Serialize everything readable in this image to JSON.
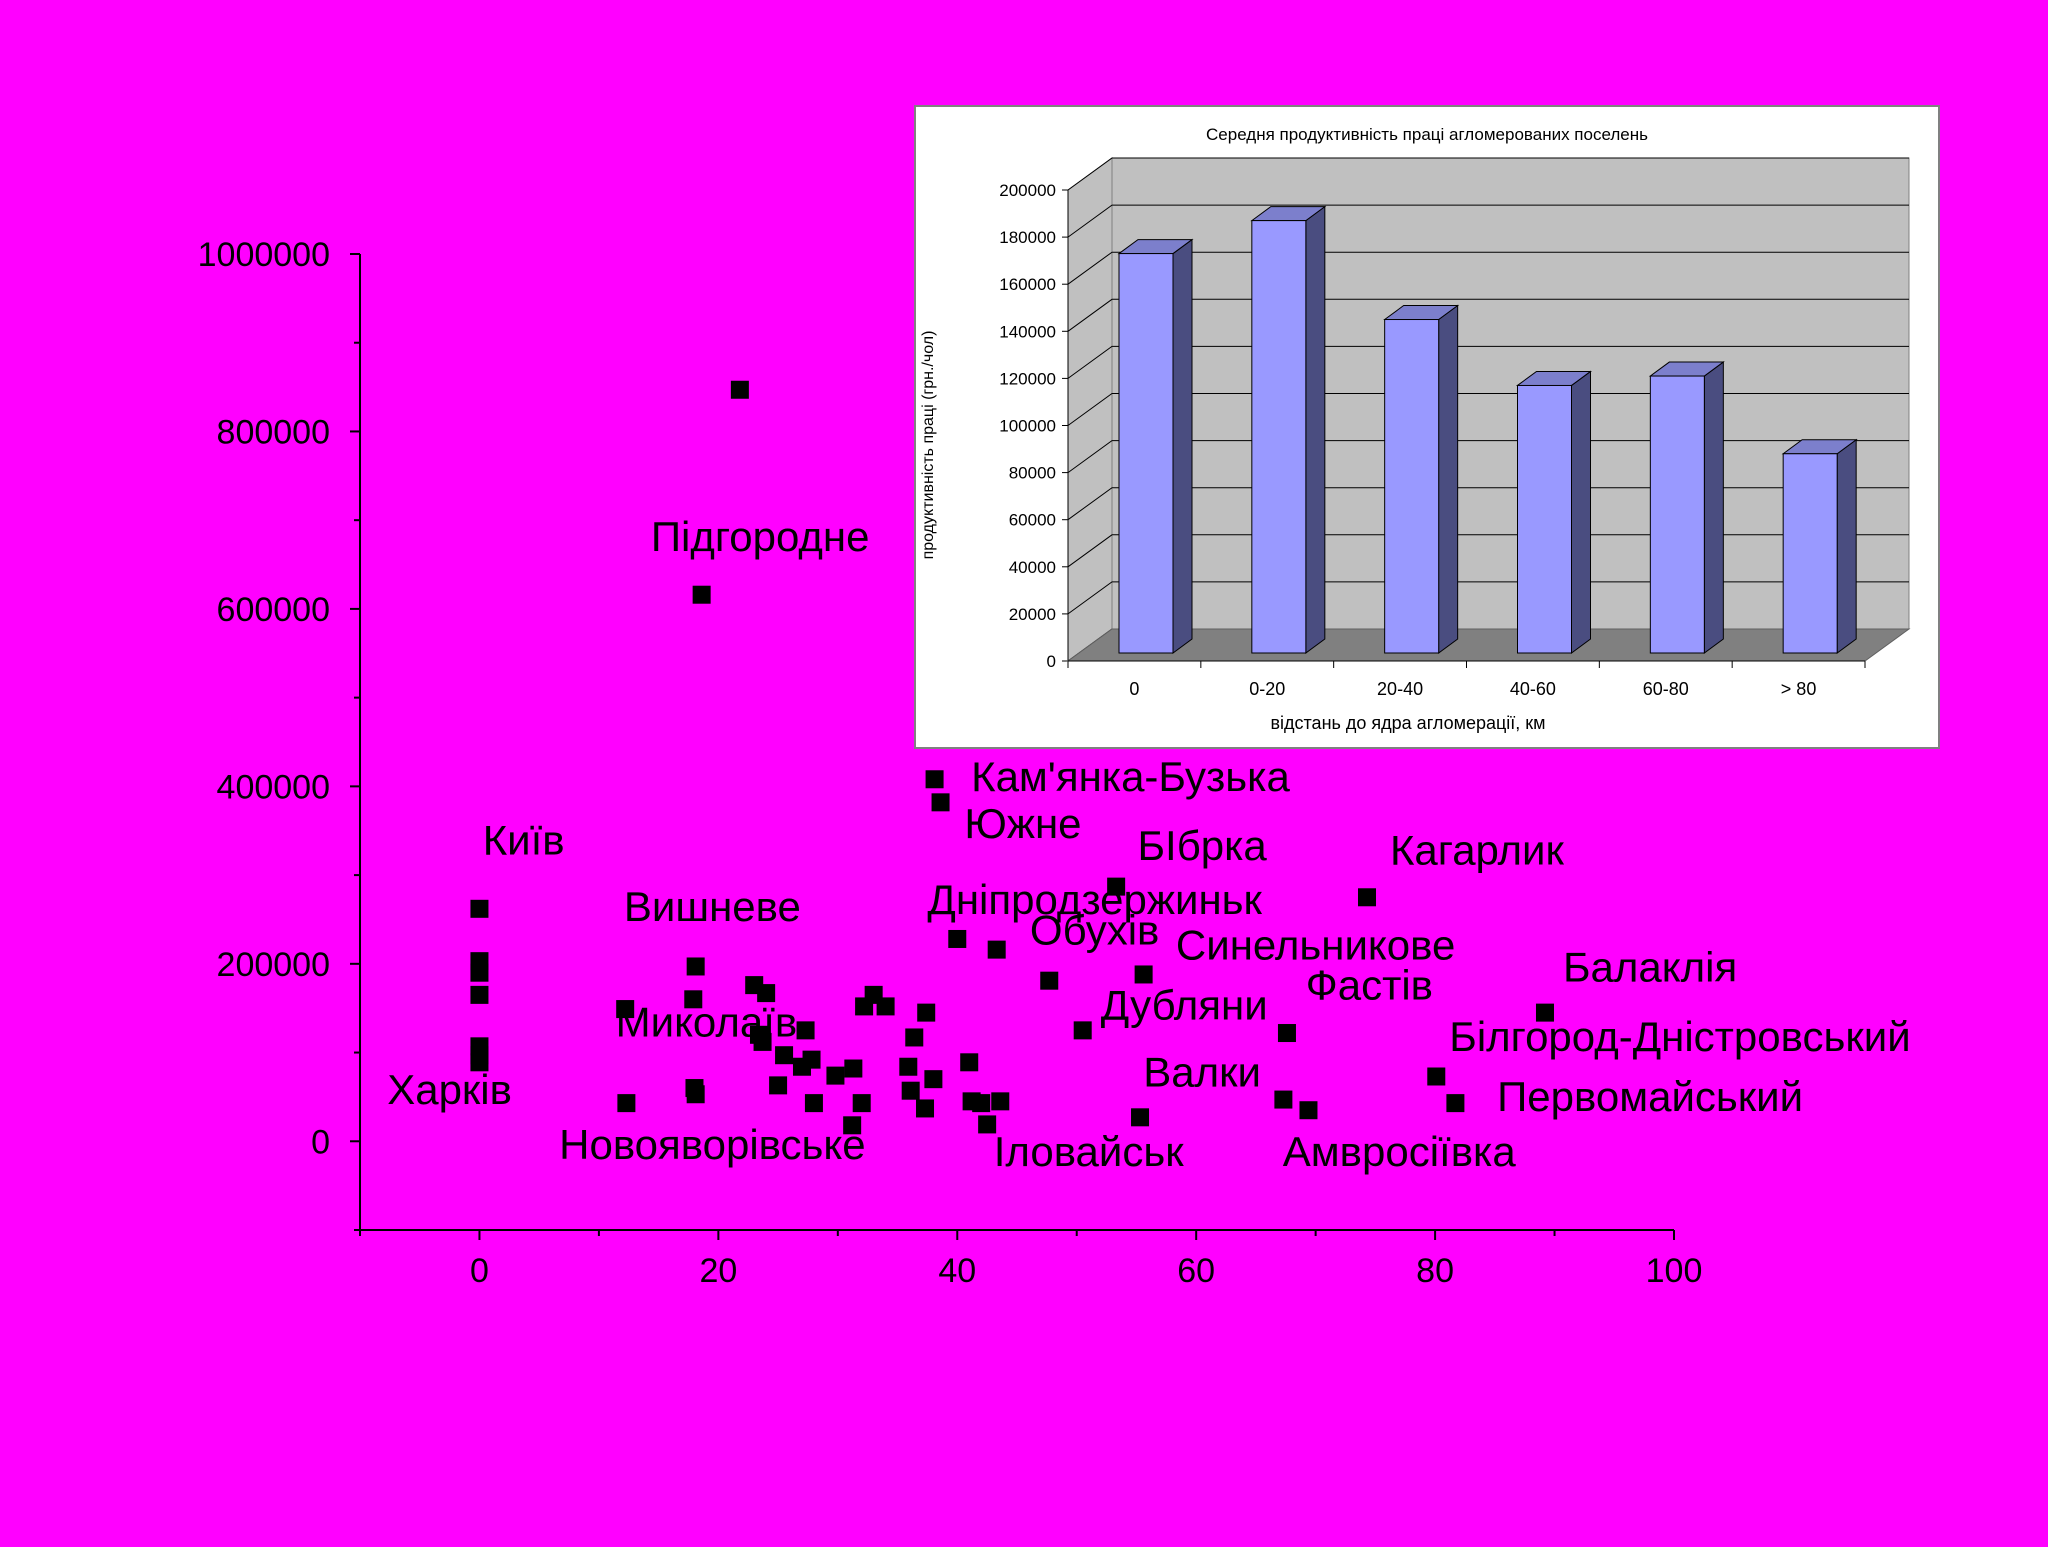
{
  "background_color": "#ff00ff",
  "chart_data": [
    {
      "type": "scatter",
      "title": "",
      "xlabel": "",
      "ylabel": "",
      "xlim": [
        -10,
        100
      ],
      "ylim": [
        -100000,
        1000000
      ],
      "x_ticks": [
        0,
        20,
        40,
        60,
        80,
        100
      ],
      "y_ticks": [
        0,
        200000,
        400000,
        600000,
        800000,
        1000000
      ],
      "marker": "square",
      "marker_color": "#000000",
      "points": [
        [
          0,
          262000
        ],
        [
          0,
          203000
        ],
        [
          0,
          190000
        ],
        [
          0,
          165000
        ],
        [
          0,
          107000
        ],
        [
          0,
          97000
        ],
        [
          0,
          89000
        ],
        [
          12.2,
          149000
        ],
        [
          12.3,
          43000
        ],
        [
          17.9,
          160000
        ],
        [
          18.1,
          197000
        ],
        [
          18.0,
          60000
        ],
        [
          18.1,
          53000
        ],
        [
          21.8,
          847000
        ],
        [
          18.6,
          616000
        ],
        [
          23.0,
          176000
        ],
        [
          23.4,
          120000
        ],
        [
          23.7,
          112000
        ],
        [
          24.0,
          167000
        ],
        [
          25.0,
          63000
        ],
        [
          25.5,
          97000
        ],
        [
          27.0,
          84000
        ],
        [
          27.3,
          125000
        ],
        [
          27.8,
          92000
        ],
        [
          28.0,
          43000
        ],
        [
          29.8,
          74000
        ],
        [
          31.2,
          18000
        ],
        [
          31.3,
          82000
        ],
        [
          32.0,
          43000
        ],
        [
          32.2,
          152000
        ],
        [
          33.0,
          165000
        ],
        [
          34.0,
          152000
        ],
        [
          35.9,
          84000
        ],
        [
          36.1,
          57000
        ],
        [
          36.4,
          117000
        ],
        [
          37.3,
          37000
        ],
        [
          37.4,
          145000
        ],
        [
          38.0,
          70000
        ],
        [
          38.1,
          408000
        ],
        [
          38.6,
          382000
        ],
        [
          40.0,
          228000
        ],
        [
          41.0,
          89000
        ],
        [
          41.2,
          45000
        ],
        [
          42.0,
          43000
        ],
        [
          42.5,
          19000
        ],
        [
          43.3,
          216000
        ],
        [
          43.6,
          45000
        ],
        [
          47.7,
          181000
        ],
        [
          50.5,
          125000
        ],
        [
          53.3,
          287000
        ],
        [
          55.3,
          27000
        ],
        [
          55.6,
          188000
        ],
        [
          67.3,
          47000
        ],
        [
          67.6,
          122000
        ],
        [
          69.4,
          35000
        ],
        [
          74.3,
          275000
        ],
        [
          80.1,
          73000
        ],
        [
          81.7,
          43000
        ],
        [
          89.2,
          145000
        ]
      ],
      "labels": [
        {
          "text": "Підгородне",
          "x": 23.5,
          "y": 665000
        },
        {
          "text": "Кам'янка-Бузька",
          "x": 54.5,
          "y": 395000
        },
        {
          "text": "Южне",
          "x": 45.5,
          "y": 342000
        },
        {
          "text": "Київ",
          "x": 3.7,
          "y": 323000
        },
        {
          "text": "БІбрка",
          "x": 60.5,
          "y": 317000
        },
        {
          "text": "Кагарлик",
          "x": 83.5,
          "y": 312000
        },
        {
          "text": "Дніпродзержиньк",
          "x": 51.5,
          "y": 256000
        },
        {
          "text": "Вишневе",
          "x": 19.5,
          "y": 248000
        },
        {
          "text": "Обухів",
          "x": 51.5,
          "y": 222000
        },
        {
          "text": "Синельникове",
          "x": 70.0,
          "y": 205000
        },
        {
          "text": "Балаклія",
          "x": 98.0,
          "y": 180000
        },
        {
          "text": "Фастів",
          "x": 74.5,
          "y": 160000
        },
        {
          "text": "Дубляни",
          "x": 59.0,
          "y": 137000
        },
        {
          "text": "Миколаїв",
          "x": 19.0,
          "y": 118000
        },
        {
          "text": "Білгород-Дністровський",
          "x": 100.5,
          "y": 102000
        },
        {
          "text": "Харків",
          "x": -2.5,
          "y": 42000
        },
        {
          "text": "Валки",
          "x": 60.5,
          "y": 62000
        },
        {
          "text": "Первомайський",
          "x": 98.0,
          "y": 34000
        },
        {
          "text": "Новояворівське",
          "x": 19.5,
          "y": -20000
        },
        {
          "text": "Іловайськ",
          "x": 51.0,
          "y": -28000
        },
        {
          "text": "Амвросіївка",
          "x": 77.0,
          "y": -28000
        }
      ]
    },
    {
      "type": "bar",
      "style": "3d",
      "title": "Середня продуктивність праці агломерованих поселень",
      "xlabel": "відстань до ядра агломерації, км",
      "ylabel": "продуктивність праці (грн./чол)",
      "categories": [
        "0",
        "0-20",
        "20-40",
        "40-60",
        "60-80",
        "> 80"
      ],
      "values": [
        173000,
        187000,
        145000,
        117000,
        121000,
        88000
      ],
      "ylim": [
        0,
        200000
      ],
      "y_ticks": [
        0,
        20000,
        40000,
        60000,
        80000,
        100000,
        120000,
        140000,
        160000,
        180000,
        200000
      ],
      "grid": true,
      "bar_color": "#9999ff",
      "bar_side_color": "#4a4d80",
      "wall_color": "#c0c0c0",
      "floor_color": "#808080"
    }
  ]
}
